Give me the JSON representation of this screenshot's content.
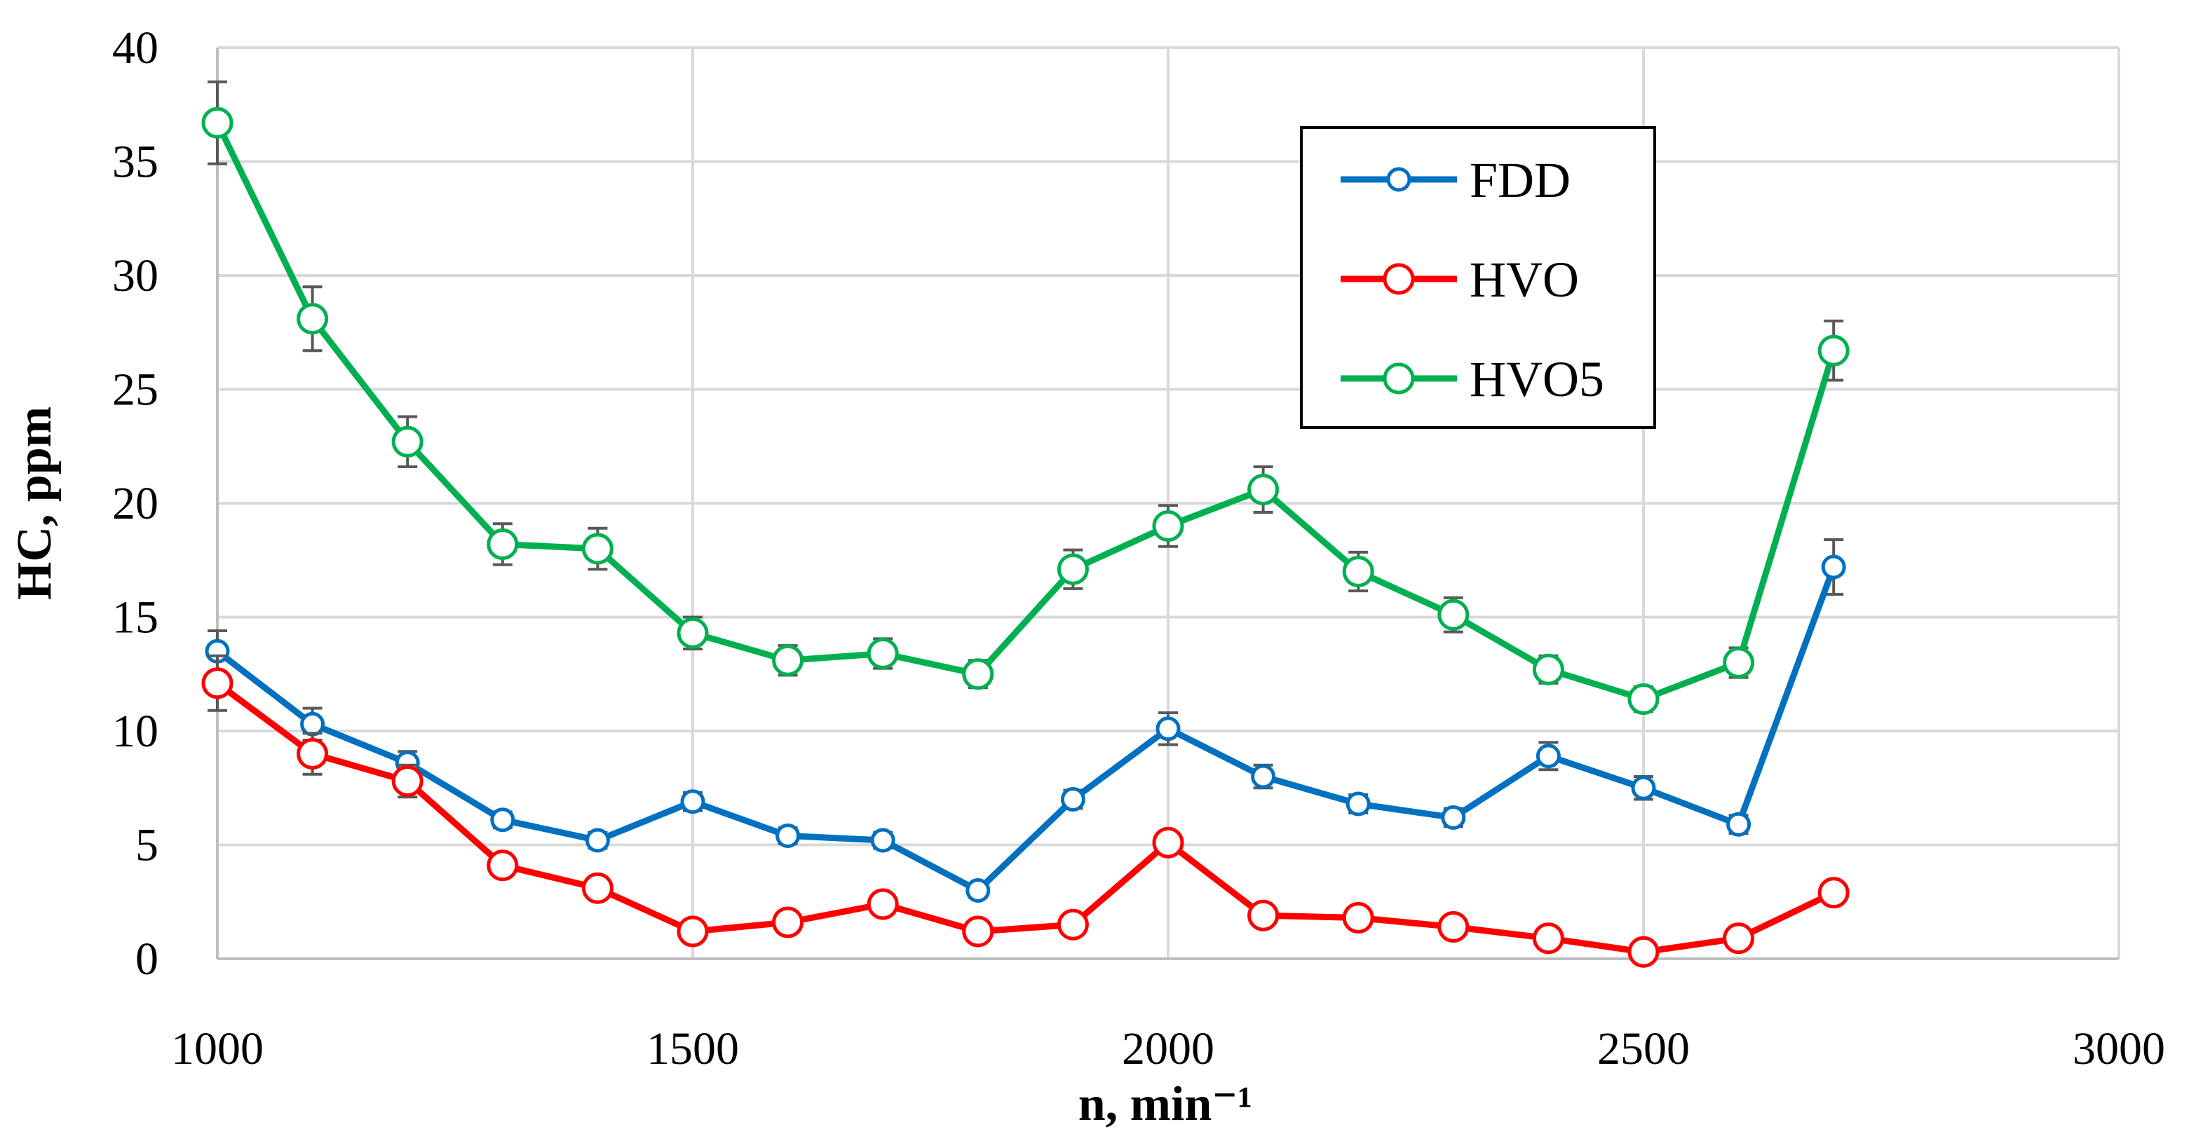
{
  "chart_data": {
    "type": "line",
    "title": "",
    "xlabel": "n, min⁻¹",
    "ylabel": "HC, ppm",
    "xlim": [
      1000,
      3000
    ],
    "ylim": [
      0,
      40
    ],
    "xticks": [
      1000,
      1500,
      2000,
      2500,
      3000
    ],
    "yticks": [
      0,
      5,
      10,
      15,
      20,
      25,
      30,
      35,
      40
    ],
    "xtick_labels": [
      "1000",
      "1500",
      "2000",
      "2500",
      "3000"
    ],
    "ytick_labels": [
      "0",
      "5",
      "10",
      "15",
      "20",
      "25",
      "30",
      "35",
      "40"
    ],
    "grid": true,
    "legend_position": "top-right",
    "x": [
      1000,
      1100,
      1200,
      1300,
      1400,
      1500,
      1600,
      1700,
      1800,
      1900,
      2000,
      2100,
      2200,
      2300,
      2400,
      2500,
      2600,
      2700
    ],
    "series": [
      {
        "name": "FDD",
        "color": "#0070C0",
        "marker_size": "small",
        "values": [
          13.5,
          10.3,
          8.6,
          6.1,
          5.2,
          6.9,
          5.4,
          5.2,
          3.0,
          7.0,
          10.1,
          8.0,
          6.8,
          6.2,
          8.9,
          7.5,
          5.9,
          17.2
        ],
        "errors": [
          0.9,
          0.7,
          0.5,
          0.35,
          0.35,
          0.4,
          0.35,
          0.35,
          0.3,
          0.4,
          0.7,
          0.5,
          0.4,
          0.4,
          0.6,
          0.5,
          0.4,
          1.2
        ]
      },
      {
        "name": "HVO",
        "color": "#FF0000",
        "marker_size": "large",
        "values": [
          12.1,
          9.0,
          7.8,
          4.1,
          3.1,
          1.2,
          1.6,
          2.4,
          1.2,
          1.5,
          5.1,
          1.9,
          1.8,
          1.4,
          0.9,
          0.3,
          0.9,
          2.9
        ],
        "errors": [
          1.2,
          0.9,
          0.7,
          0.2,
          0.2,
          0.1,
          0.1,
          0.15,
          0.1,
          0.1,
          0.3,
          0.15,
          0.15,
          0.1,
          0.1,
          0.05,
          0.1,
          0.2
        ]
      },
      {
        "name": "HVO5",
        "color": "#00B050",
        "marker_size": "large",
        "values": [
          36.7,
          28.1,
          22.7,
          18.2,
          18.0,
          14.3,
          13.1,
          13.4,
          12.5,
          17.1,
          19.0,
          20.6,
          17.0,
          15.1,
          12.7,
          11.4,
          13.0,
          26.7
        ],
        "errors": [
          1.8,
          1.4,
          1.1,
          0.9,
          0.9,
          0.7,
          0.65,
          0.65,
          0.6,
          0.85,
          0.9,
          1.0,
          0.85,
          0.75,
          0.6,
          0.55,
          0.65,
          1.3
        ]
      }
    ]
  }
}
